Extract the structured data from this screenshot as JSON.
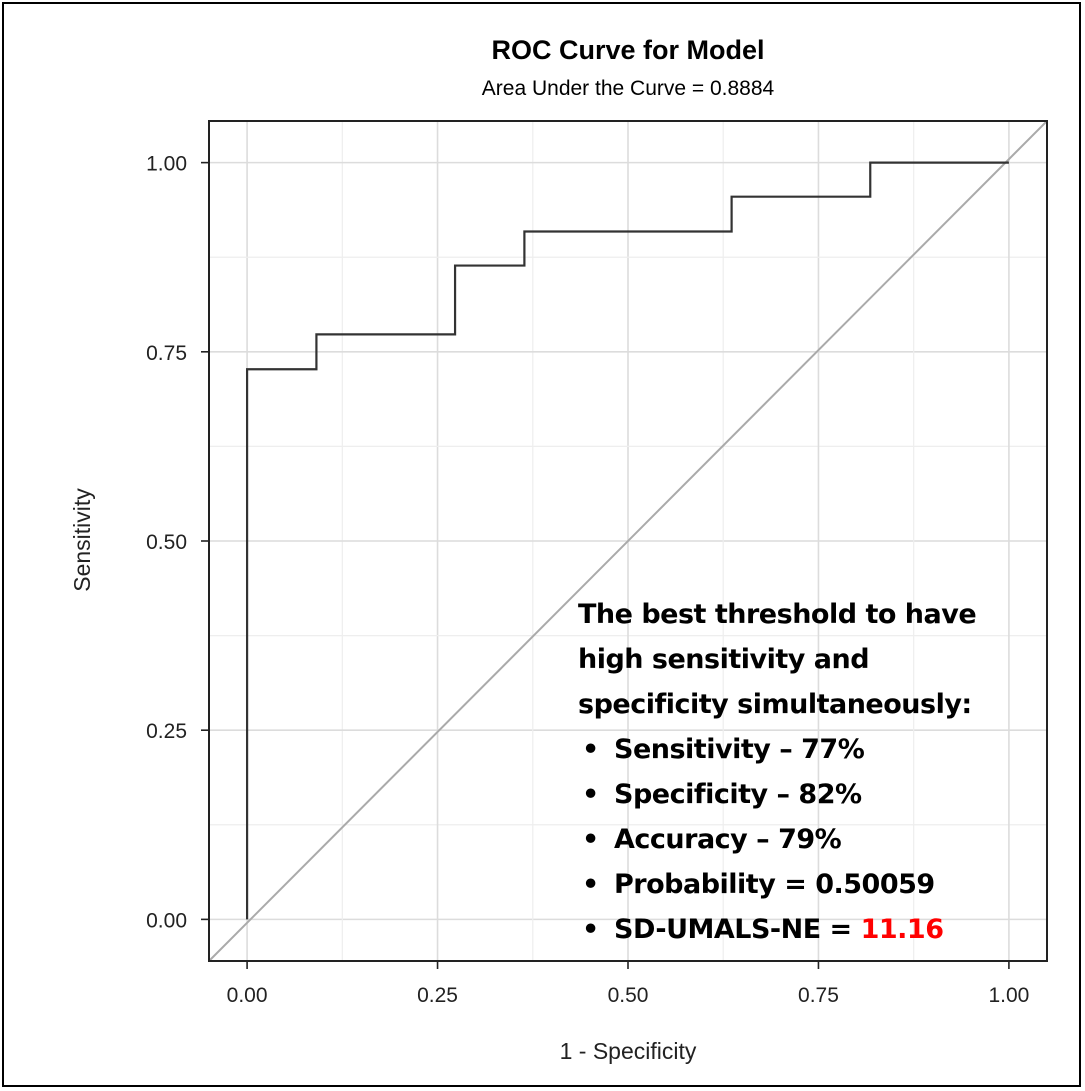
{
  "chart_data": {
    "type": "line",
    "title": "ROC Curve for Model",
    "subtitle": "Area Under the Curve = 0.8884",
    "xlabel": "1 - Specificity",
    "ylabel": "Sensitivity",
    "xlim": [
      -0.05,
      1.05
    ],
    "ylim": [
      -0.055,
      1.055
    ],
    "x_ticks": [
      "0.00",
      "0.25",
      "0.50",
      "0.75",
      "1.00"
    ],
    "y_ticks": [
      "0.00",
      "0.25",
      "0.50",
      "0.75",
      "1.00"
    ],
    "grid": true,
    "series": [
      {
        "type": "step",
        "color": "#333333",
        "points": [
          [
            0.0,
            0.0
          ],
          [
            0.0,
            0.727
          ],
          [
            0.091,
            0.727
          ],
          [
            0.091,
            0.773
          ],
          [
            0.273,
            0.773
          ],
          [
            0.273,
            0.864
          ],
          [
            0.364,
            0.864
          ],
          [
            0.364,
            0.909
          ],
          [
            0.636,
            0.909
          ],
          [
            0.636,
            0.955
          ],
          [
            0.818,
            0.955
          ],
          [
            0.818,
            1.0
          ],
          [
            1.0,
            1.0
          ]
        ]
      },
      {
        "type": "reference",
        "color": "#aaaaaa",
        "points": [
          [
            -0.05,
            -0.055
          ],
          [
            1.05,
            1.055
          ]
        ]
      }
    ],
    "annotation": {
      "heading": "The best threshold to have high sensitivity and specificity simultaneously:",
      "items": [
        {
          "label": "Sensitivity – 77%"
        },
        {
          "label": "Specificity – 82%"
        },
        {
          "label": "Accuracy – 79%"
        },
        {
          "label": "Probability = 0.50059"
        },
        {
          "label": "SD-UMALS-NE = ",
          "highlight": "11.16",
          "highlight_color": "#ff0000"
        }
      ],
      "bullet": "•"
    }
  }
}
